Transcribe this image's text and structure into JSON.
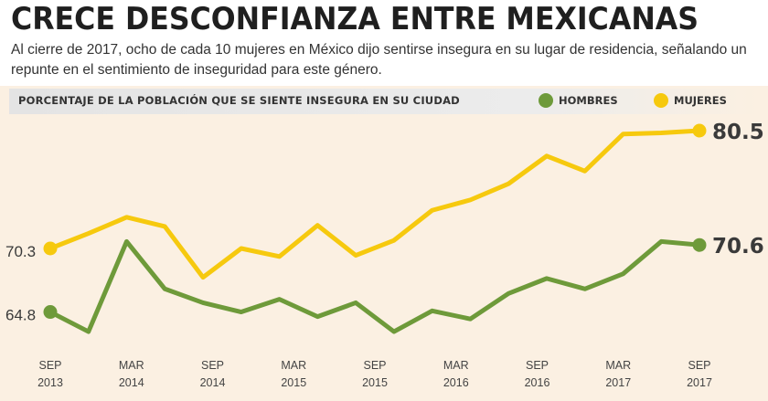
{
  "header": {
    "title": "CRECE DESCONFIANZA ENTRE MEXICANAS",
    "subtitle": "Al cierre de 2017, ocho de cada 10 mujeres en México dijo sentirse insegura en su lugar de residencia, señalando un repunte en el sentimiento de inseguridad para este género."
  },
  "legend": {
    "title": "PORCENTAJE DE LA POBLACIÓN QUE SE SIENTE INSEGURA EN SU CIUDAD",
    "items": [
      {
        "label": "HOMBRES",
        "color": "#6e9a3a"
      },
      {
        "label": "MUJERES",
        "color": "#f6c90e"
      }
    ]
  },
  "chart_data": {
    "type": "line",
    "title": "PORCENTAJE DE LA POBLACIÓN QUE SE SIENTE INSEGURA EN SU CIUDAD",
    "x_ticks": [
      {
        "month": "SEP",
        "year": "2013"
      },
      {
        "month": "MAR",
        "year": "2014"
      },
      {
        "month": "SEP",
        "year": "2014"
      },
      {
        "month": "MAR",
        "year": "2015"
      },
      {
        "month": "SEP",
        "year": "2015"
      },
      {
        "month": "MAR",
        "year": "2016"
      },
      {
        "month": "SEP",
        "year": "2016"
      },
      {
        "month": "MAR",
        "year": "2017"
      },
      {
        "month": "SEP",
        "year": "2017"
      }
    ],
    "series": [
      {
        "name": "MUJERES",
        "color": "#f6c90e",
        "values": [
          70.3,
          71.6,
          73.0,
          72.2,
          67.8,
          70.3,
          69.6,
          72.3,
          69.7,
          71.0,
          73.6,
          74.5,
          75.9,
          78.3,
          77.0,
          80.2,
          80.3,
          80.5
        ],
        "start_label": "70.3",
        "end_label": "80.5"
      },
      {
        "name": "HOMBRES",
        "color": "#6e9a3a",
        "values": [
          64.8,
          63.1,
          70.9,
          66.8,
          65.6,
          64.8,
          65.9,
          64.4,
          65.6,
          63.1,
          64.9,
          64.2,
          66.4,
          67.7,
          66.8,
          68.1,
          70.9,
          70.6
        ],
        "start_label": "64.8",
        "end_label": "70.6"
      }
    ]
  }
}
